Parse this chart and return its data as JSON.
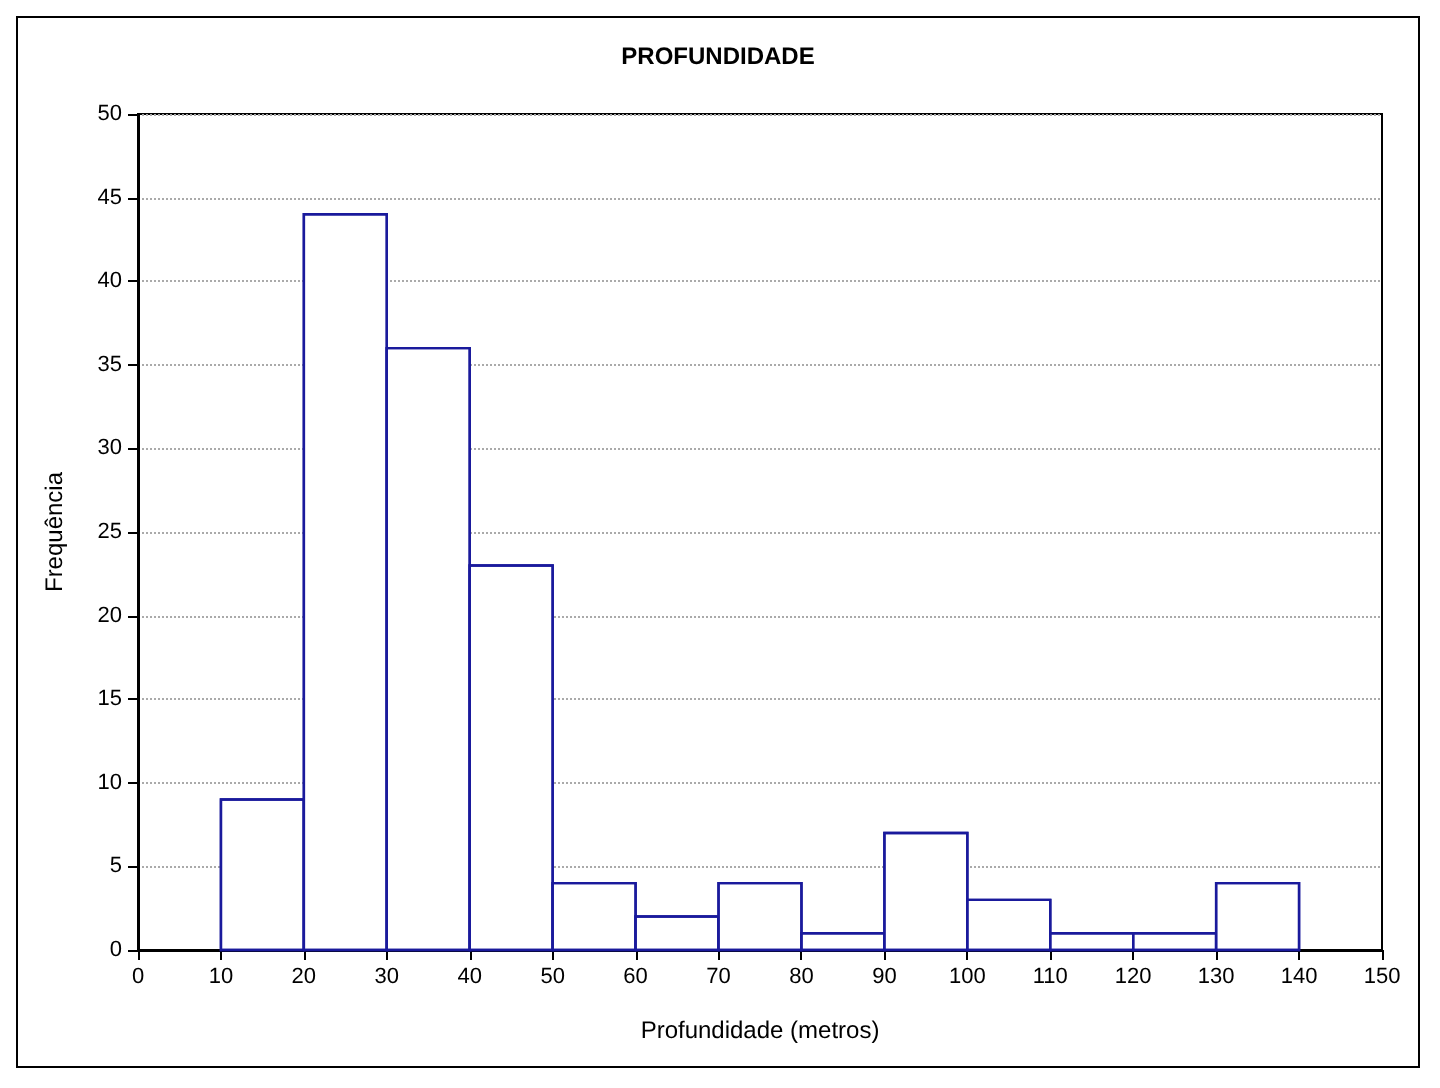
{
  "chart_data": {
    "type": "histogram",
    "title": "PROFUNDIDADE",
    "xlabel": "Profundidade (metros)",
    "ylabel": "Frequência",
    "bins": [
      10,
      20,
      30,
      40,
      50,
      60,
      70,
      80,
      90,
      100,
      110,
      120,
      130,
      140
    ],
    "values": [
      9,
      44,
      36,
      23,
      4,
      2,
      4,
      1,
      7,
      3,
      1,
      1,
      4
    ],
    "color": "#1a1a9c",
    "xlim": [
      0,
      150
    ],
    "xticks": [
      0,
      10,
      20,
      30,
      40,
      50,
      60,
      70,
      80,
      90,
      100,
      110,
      120,
      130,
      140,
      150
    ],
    "ylim": [
      0,
      50
    ],
    "yticks": [
      0,
      5,
      10,
      15,
      20,
      25,
      30,
      35,
      40,
      45,
      50
    ],
    "grid": "y"
  }
}
